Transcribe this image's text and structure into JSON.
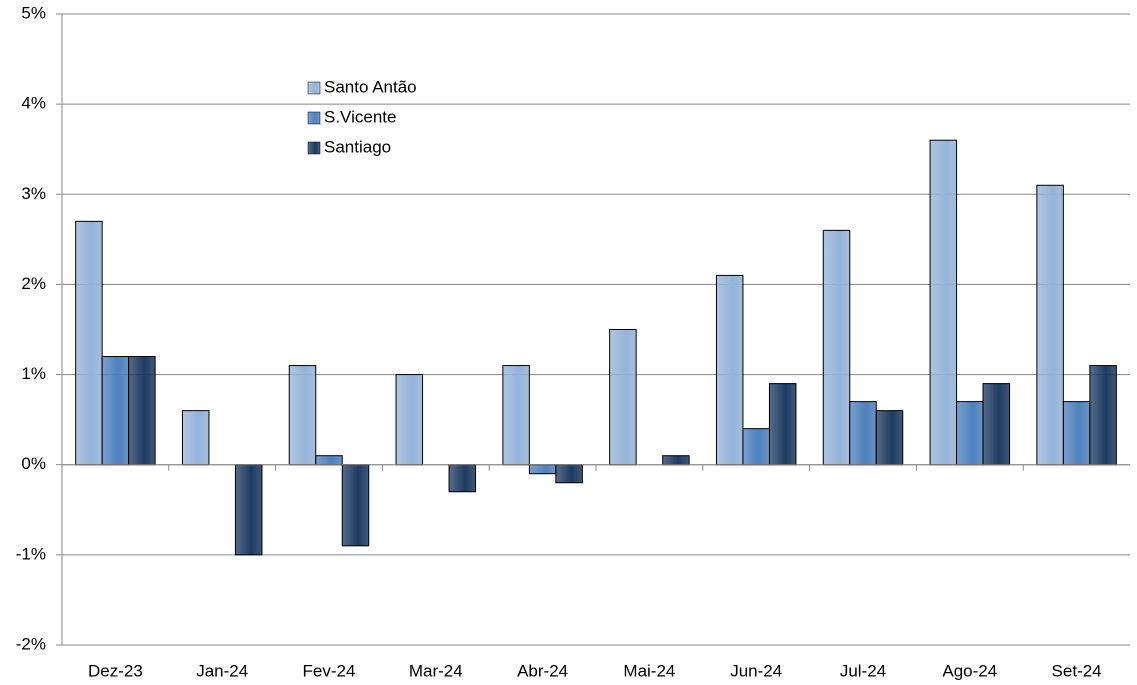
{
  "chart_data": {
    "type": "bar",
    "categories": [
      "Dez-23",
      "Jan-24",
      "Fev-24",
      "Mar-24",
      "Abr-24",
      "Mai-24",
      "Jun-24",
      "Jul-24",
      "Ago-24",
      "Set-24"
    ],
    "series": [
      {
        "name": "Santo Antão",
        "color": "#95b3d7",
        "values": [
          2.7,
          0.6,
          1.1,
          1.0,
          1.1,
          1.5,
          2.1,
          2.6,
          3.6,
          3.1
        ]
      },
      {
        "name": "S.Vicente",
        "color": "#4f81bd",
        "values": [
          1.2,
          0,
          0.1,
          0,
          -0.1,
          0,
          0.4,
          0.7,
          0.7,
          0.7
        ]
      },
      {
        "name": "Santiago",
        "color": "#1f3b62",
        "values": [
          1.2,
          -1.0,
          -0.9,
          -0.3,
          -0.2,
          0.1,
          0.9,
          0.6,
          0.9,
          1.1
        ]
      }
    ],
    "ylim": [
      -2,
      5
    ],
    "yticks": [
      {
        "value": -2,
        "label": "-2%"
      },
      {
        "value": -1,
        "label": "-1%"
      },
      {
        "value": 0,
        "label": "0%"
      },
      {
        "value": 1,
        "label": "1%"
      },
      {
        "value": 2,
        "label": "2%"
      },
      {
        "value": 3,
        "label": "3%"
      },
      {
        "value": 4,
        "label": "4%"
      },
      {
        "value": 5,
        "label": "5%"
      }
    ],
    "grid": true,
    "legend": "upper-left"
  }
}
